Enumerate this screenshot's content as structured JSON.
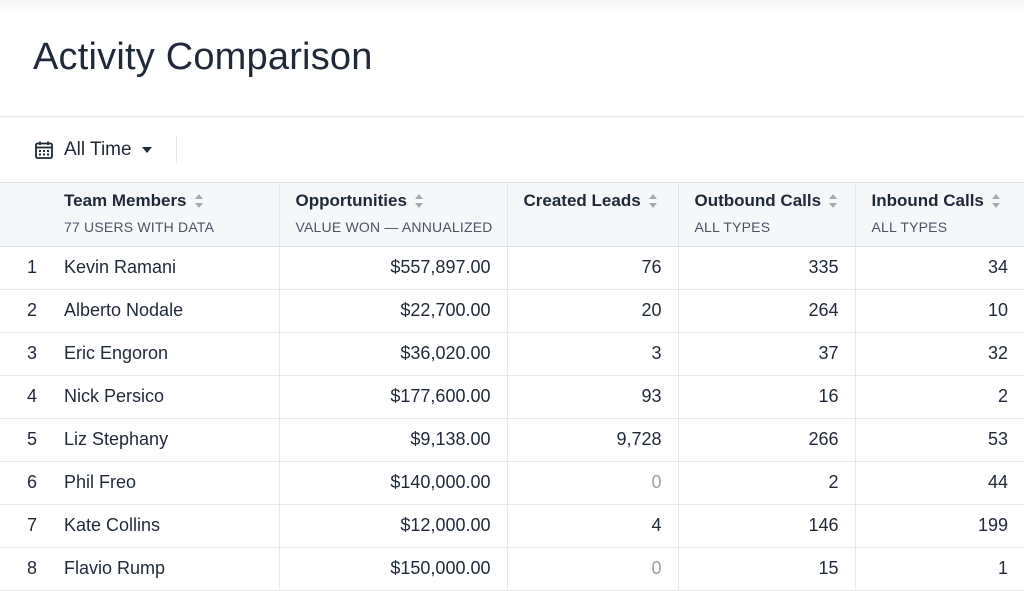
{
  "page": {
    "title": "Activity Comparison"
  },
  "filters": {
    "date_range": {
      "label": "All Time",
      "icon": "calendar-icon"
    }
  },
  "table": {
    "columns": [
      {
        "title": "Team Members",
        "subtitle": "77 USERS WITH DATA"
      },
      {
        "title": "Opportunities",
        "subtitle": "VALUE WON — ANNUALIZED"
      },
      {
        "title": "Created Leads",
        "subtitle": ""
      },
      {
        "title": "Outbound Calls",
        "subtitle": "ALL TYPES"
      },
      {
        "title": "Inbound Calls",
        "subtitle": "ALL TYPES"
      }
    ],
    "rows": [
      {
        "rank": "1",
        "name": "Kevin Ramani",
        "opportunities": "$557,897.00",
        "created_leads": "76",
        "outbound_calls": "335",
        "inbound_calls": "34"
      },
      {
        "rank": "2",
        "name": "Alberto Nodale",
        "opportunities": "$22,700.00",
        "created_leads": "20",
        "outbound_calls": "264",
        "inbound_calls": "10"
      },
      {
        "rank": "3",
        "name": "Eric Engoron",
        "opportunities": "$36,020.00",
        "created_leads": "3",
        "outbound_calls": "37",
        "inbound_calls": "32"
      },
      {
        "rank": "4",
        "name": "Nick Persico",
        "opportunities": "$177,600.00",
        "created_leads": "93",
        "outbound_calls": "16",
        "inbound_calls": "2"
      },
      {
        "rank": "5",
        "name": "Liz Stephany",
        "opportunities": "$9,138.00",
        "created_leads": "9,728",
        "outbound_calls": "266",
        "inbound_calls": "53"
      },
      {
        "rank": "6",
        "name": "Phil Freo",
        "opportunities": "$140,000.00",
        "created_leads": "0",
        "outbound_calls": "2",
        "inbound_calls": "44"
      },
      {
        "rank": "7",
        "name": "Kate Collins",
        "opportunities": "$12,000.00",
        "created_leads": "4",
        "outbound_calls": "146",
        "inbound_calls": "199"
      },
      {
        "rank": "8",
        "name": "Flavio Rump",
        "opportunities": "$150,000.00",
        "created_leads": "0",
        "outbound_calls": "15",
        "inbound_calls": "1"
      }
    ]
  },
  "colors": {
    "zero_value": "#9aa1a9",
    "header_bg": "#f6f7f9",
    "text": "#1f2937"
  }
}
